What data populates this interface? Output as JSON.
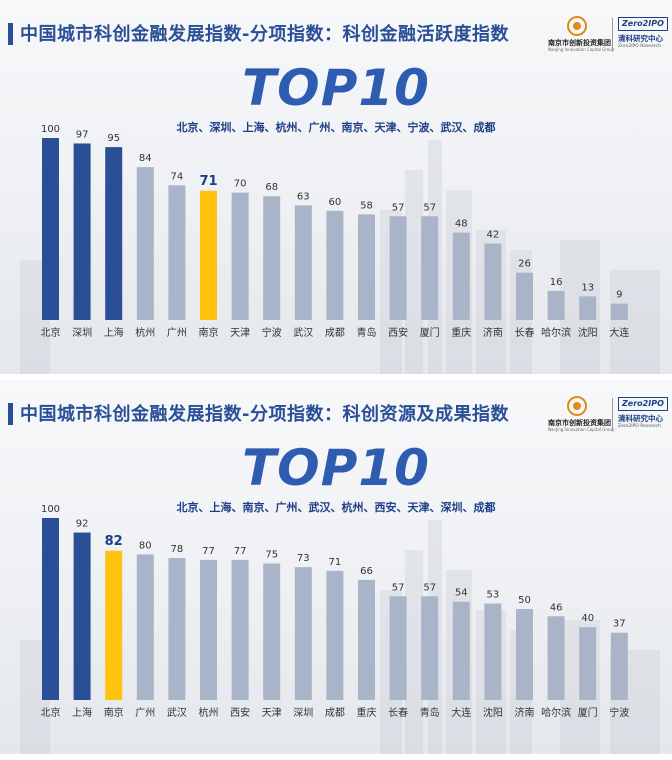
{
  "panels": [
    {
      "title": "中国城市科创金融发展指数-分项指数：科创金融活跃度指数",
      "logo_a": {
        "cn": "南京市创新投资集团",
        "en": "Nanjing Innovation Capital Group"
      },
      "logo_b": {
        "badge": "Zero2IPO",
        "cn": "清科研究中心",
        "en": "Zero2IPO Research"
      },
      "headline": "TOP10",
      "top10_list": "北京、深圳、上海、杭州、广州、南京、天津、宁波、武汉、成都"
    },
    {
      "title": "中国城市科创金融发展指数-分项指数：科创资源及成果指数",
      "logo_a": {
        "cn": "南京市创新投资集团",
        "en": "Nanjing Innovation Capital Group"
      },
      "logo_b": {
        "badge": "Zero2IPO",
        "cn": "清科研究中心",
        "en": "Zero2IPO Research"
      },
      "headline": "TOP10",
      "top10_list": "北京、上海、南京、广州、武汉、杭州、西安、天津、深圳、成都"
    }
  ],
  "colors": {
    "top3": "#2a4f96",
    "others": "#aab4c9",
    "highlight": "#ffc20e",
    "title": "#2a4f96",
    "headline": "#2d5cb0"
  },
  "chart_data": [
    {
      "type": "bar",
      "title": "中国城市科创金融发展指数-分项指数：科创金融活跃度指数",
      "categories": [
        "北京",
        "深圳",
        "上海",
        "杭州",
        "广州",
        "南京",
        "天津",
        "宁波",
        "武汉",
        "成都",
        "青岛",
        "西安",
        "厦门",
        "重庆",
        "济南",
        "长春",
        "哈尔滨",
        "沈阳",
        "大连"
      ],
      "values": [
        100,
        97,
        95,
        84,
        74,
        71,
        70,
        68,
        63,
        60,
        58,
        57,
        57,
        48,
        42,
        26,
        16,
        13,
        9
      ],
      "highlight": "南京",
      "top_colored_count": 3,
      "ylim": [
        0,
        100
      ],
      "grid": false,
      "legend": "none"
    },
    {
      "type": "bar",
      "title": "中国城市科创金融发展指数-分项指数：科创资源及成果指数",
      "categories": [
        "北京",
        "上海",
        "南京",
        "广州",
        "武汉",
        "杭州",
        "西安",
        "天津",
        "深圳",
        "成都",
        "重庆",
        "长春",
        "青岛",
        "大连",
        "沈阳",
        "济南",
        "哈尔滨",
        "厦门",
        "宁波"
      ],
      "values": [
        100,
        92,
        82,
        80,
        78,
        77,
        77,
        75,
        73,
        71,
        66,
        57,
        57,
        54,
        53,
        50,
        46,
        40,
        37
      ],
      "highlight": "南京",
      "top_colored_count": 2,
      "ylim": [
        0,
        100
      ],
      "grid": false,
      "legend": "none"
    }
  ]
}
